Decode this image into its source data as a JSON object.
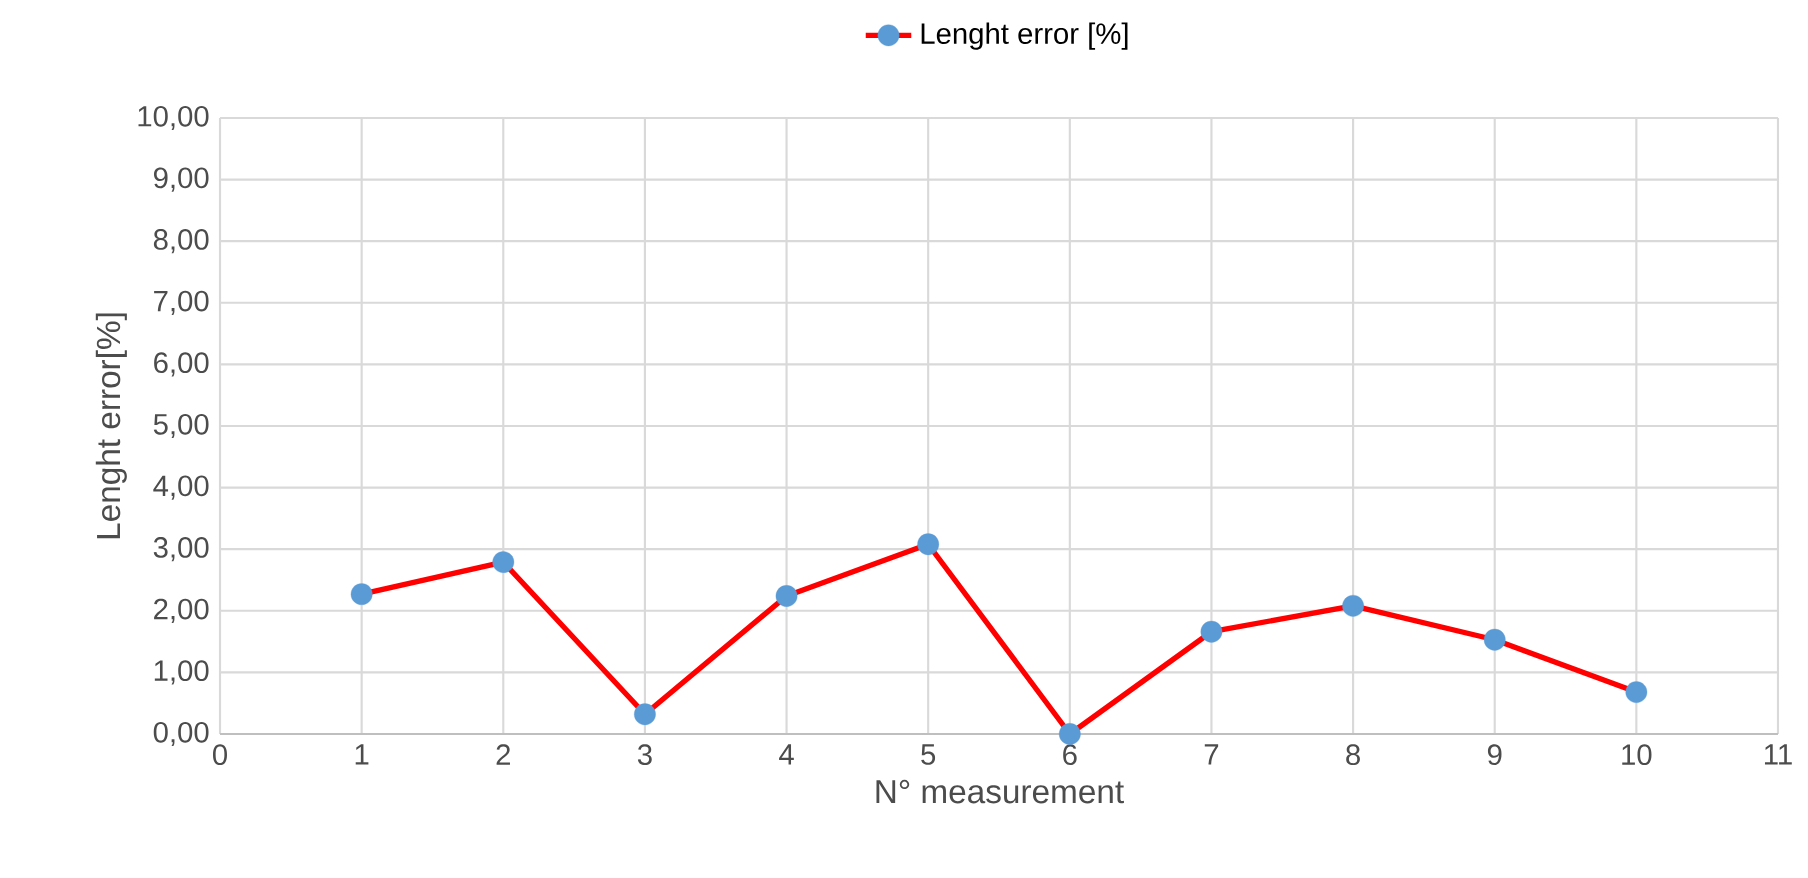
{
  "chart_data": {
    "type": "line",
    "xlabel": "N° measurement",
    "ylabel": "Lenght error[%]",
    "x": [
      1,
      2,
      3,
      4,
      5,
      6,
      7,
      8,
      9,
      10
    ],
    "series": [
      {
        "name": "Lenght error [%]",
        "color": "#ff0000",
        "values": [
          2.27,
          2.79,
          0.32,
          2.24,
          3.08,
          0.0,
          1.66,
          2.08,
          1.53,
          0.68
        ]
      }
    ],
    "xlim": [
      0,
      11
    ],
    "xticks": [
      0,
      1,
      2,
      3,
      4,
      5,
      6,
      7,
      8,
      9,
      10,
      11
    ],
    "ylim": [
      0,
      10
    ],
    "yticks": [
      {
        "value": 0,
        "label": "0,00"
      },
      {
        "value": 1,
        "label": "1,00"
      },
      {
        "value": 2,
        "label": "2,00"
      },
      {
        "value": 3,
        "label": "3,00"
      },
      {
        "value": 4,
        "label": "4,00"
      },
      {
        "value": 5,
        "label": "5,00"
      },
      {
        "value": 6,
        "label": "6,00"
      },
      {
        "value": 7,
        "label": "7,00"
      },
      {
        "value": 8,
        "label": "8,00"
      },
      {
        "value": 9,
        "label": "9,00"
      },
      {
        "value": 10,
        "label": "10,00"
      }
    ],
    "grid": true,
    "legend": "top",
    "marker": "circle",
    "line_style": "solid"
  }
}
